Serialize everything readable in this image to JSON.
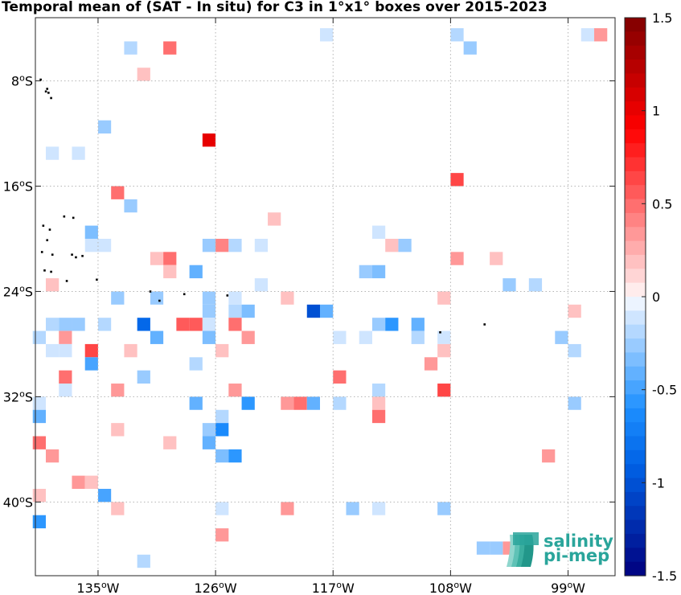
{
  "chart_data": {
    "type": "heatmap",
    "title": "Temporal mean of (SAT - In situ) for C3 in 1°x1° boxes over 2015-2023",
    "x_ticks": [
      {
        "value": -135,
        "label": "135°W"
      },
      {
        "value": -126,
        "label": "126°W"
      },
      {
        "value": -117,
        "label": "117°W"
      },
      {
        "value": -108,
        "label": "108°W"
      },
      {
        "value": -99,
        "label": "99°W"
      }
    ],
    "y_ticks": [
      {
        "value": -8,
        "label": "8°S"
      },
      {
        "value": -16,
        "label": "16°S"
      },
      {
        "value": -24,
        "label": "24°S"
      },
      {
        "value": -32,
        "label": "32°S"
      },
      {
        "value": -40,
        "label": "40°S"
      }
    ],
    "xlim": [
      -139.8,
      -95.4
    ],
    "ylim": [
      -45.6,
      -3.2
    ],
    "grid": true,
    "colorbar": {
      "range": [
        -1.5,
        1.5
      ],
      "ticks": [
        {
          "value": 1.5,
          "label": "1.5"
        },
        {
          "value": 1,
          "label": "1"
        },
        {
          "value": 0.5,
          "label": "0.5"
        },
        {
          "value": 0,
          "label": "0"
        },
        {
          "value": -0.5,
          "label": "-0.5"
        },
        {
          "value": -1,
          "label": "-1"
        },
        {
          "value": -1.5,
          "label": "-1.5"
        }
      ]
    },
    "cells": [
      {
        "lon": -117.5,
        "lat": -4.5,
        "v": -0.1
      },
      {
        "lon": -107.5,
        "lat": -4.5,
        "v": -0.2
      },
      {
        "lon": -97.5,
        "lat": -4.5,
        "v": -0.1
      },
      {
        "lon": -96.5,
        "lat": -4.5,
        "v": 0.3
      },
      {
        "lon": -132.5,
        "lat": -5.5,
        "v": -0.2
      },
      {
        "lon": -129.5,
        "lat": -5.5,
        "v": 0.45
      },
      {
        "lon": -106.5,
        "lat": -5.5,
        "v": -0.3
      },
      {
        "lon": -131.5,
        "lat": -7.5,
        "v": 0.2
      },
      {
        "lon": -134.5,
        "lat": -11.5,
        "v": -0.25
      },
      {
        "lon": -126.5,
        "lat": -12.5,
        "v": 1.0
      },
      {
        "lon": -138.5,
        "lat": -13.5,
        "v": -0.15
      },
      {
        "lon": -136.5,
        "lat": -13.5,
        "v": -0.15
      },
      {
        "lon": -107.5,
        "lat": -15.5,
        "v": 0.6
      },
      {
        "lon": -133.5,
        "lat": -16.5,
        "v": 0.5
      },
      {
        "lon": -132.5,
        "lat": -17.5,
        "v": -0.25
      },
      {
        "lon": -121.5,
        "lat": -18.5,
        "v": 0.15
      },
      {
        "lon": -135.5,
        "lat": -19.5,
        "v": -0.35
      },
      {
        "lon": -113.5,
        "lat": -19.5,
        "v": -0.1
      },
      {
        "lon": -135.5,
        "lat": -20.5,
        "v": -0.1
      },
      {
        "lon": -134.5,
        "lat": -20.5,
        "v": -0.1
      },
      {
        "lon": -126.5,
        "lat": -20.5,
        "v": -0.3
      },
      {
        "lon": -125.5,
        "lat": -20.5,
        "v": 0.4
      },
      {
        "lon": -124.5,
        "lat": -20.5,
        "v": -0.2
      },
      {
        "lon": -122.5,
        "lat": -20.5,
        "v": -0.15
      },
      {
        "lon": -112.5,
        "lat": -20.5,
        "v": 0.15
      },
      {
        "lon": -111.5,
        "lat": -20.5,
        "v": -0.25
      },
      {
        "lon": -130.5,
        "lat": -21.5,
        "v": 0.2
      },
      {
        "lon": -129.5,
        "lat": -21.5,
        "v": 0.45
      },
      {
        "lon": -107.5,
        "lat": -21.5,
        "v": 0.3
      },
      {
        "lon": -104.5,
        "lat": -21.5,
        "v": 0.2
      },
      {
        "lon": -129.5,
        "lat": -22.5,
        "v": 0.2
      },
      {
        "lon": -127.5,
        "lat": -22.5,
        "v": -0.45
      },
      {
        "lon": -114.5,
        "lat": -22.5,
        "v": -0.25
      },
      {
        "lon": -113.5,
        "lat": -22.5,
        "v": -0.35
      },
      {
        "lon": -138.5,
        "lat": -23.5,
        "v": 0.2
      },
      {
        "lon": -122.5,
        "lat": -23.5,
        "v": -0.15
      },
      {
        "lon": -103.5,
        "lat": -23.5,
        "v": -0.3
      },
      {
        "lon": -101.5,
        "lat": -23.5,
        "v": -0.2
      },
      {
        "lon": -133.5,
        "lat": -24.5,
        "v": -0.3
      },
      {
        "lon": -130.5,
        "lat": -24.5,
        "v": -0.3
      },
      {
        "lon": -126.5,
        "lat": -24.5,
        "v": -0.3
      },
      {
        "lon": -124.5,
        "lat": -24.5,
        "v": -0.15
      },
      {
        "lon": -120.5,
        "lat": -24.5,
        "v": 0.2
      },
      {
        "lon": -108.5,
        "lat": -24.5,
        "v": 0.2
      },
      {
        "lon": -126.5,
        "lat": -25.5,
        "v": -0.3
      },
      {
        "lon": -124.5,
        "lat": -25.5,
        "v": -0.2
      },
      {
        "lon": -123.5,
        "lat": -25.5,
        "v": -0.35
      },
      {
        "lon": -118.5,
        "lat": -25.5,
        "v": -1.0
      },
      {
        "lon": -117.5,
        "lat": -25.5,
        "v": -0.45
      },
      {
        "lon": -98.5,
        "lat": -25.5,
        "v": 0.2
      },
      {
        "lon": -138.5,
        "lat": -26.5,
        "v": -0.2
      },
      {
        "lon": -137.5,
        "lat": -26.5,
        "v": -0.3
      },
      {
        "lon": -136.5,
        "lat": -26.5,
        "v": -0.3
      },
      {
        "lon": -134.5,
        "lat": -26.5,
        "v": -0.2
      },
      {
        "lon": -131.5,
        "lat": -26.5,
        "v": -0.9
      },
      {
        "lon": -128.5,
        "lat": -26.5,
        "v": 0.55
      },
      {
        "lon": -127.5,
        "lat": -26.5,
        "v": 0.55
      },
      {
        "lon": -126.5,
        "lat": -26.5,
        "v": -0.1
      },
      {
        "lon": -124.5,
        "lat": -26.5,
        "v": 0.45
      },
      {
        "lon": -113.5,
        "lat": -26.5,
        "v": -0.3
      },
      {
        "lon": -112.5,
        "lat": -26.5,
        "v": -0.6
      },
      {
        "lon": -110.5,
        "lat": -26.5,
        "v": -0.4
      },
      {
        "lon": -139.5,
        "lat": -27.5,
        "v": -0.2
      },
      {
        "lon": -137.5,
        "lat": -27.5,
        "v": 0.3
      },
      {
        "lon": -130.5,
        "lat": -27.5,
        "v": -0.4
      },
      {
        "lon": -126.5,
        "lat": -27.5,
        "v": -0.35
      },
      {
        "lon": -123.5,
        "lat": -27.5,
        "v": 0.3
      },
      {
        "lon": -116.5,
        "lat": -27.5,
        "v": -0.1
      },
      {
        "lon": -114.5,
        "lat": -27.5,
        "v": -0.15
      },
      {
        "lon": -110.5,
        "lat": -27.5,
        "v": -0.2
      },
      {
        "lon": -108.5,
        "lat": -27.5,
        "v": -0.15
      },
      {
        "lon": -99.5,
        "lat": -27.5,
        "v": -0.3
      },
      {
        "lon": -138.5,
        "lat": -28.5,
        "v": -0.15
      },
      {
        "lon": -137.5,
        "lat": -28.5,
        "v": -0.15
      },
      {
        "lon": -135.5,
        "lat": -28.5,
        "v": 0.6
      },
      {
        "lon": -132.5,
        "lat": -28.5,
        "v": 0.2
      },
      {
        "lon": -125.5,
        "lat": -28.5,
        "v": 0.15
      },
      {
        "lon": -108.5,
        "lat": -28.5,
        "v": 0.2
      },
      {
        "lon": -98.5,
        "lat": -28.5,
        "v": -0.2
      },
      {
        "lon": -135.5,
        "lat": -29.5,
        "v": -0.5
      },
      {
        "lon": -127.5,
        "lat": -29.5,
        "v": -0.2
      },
      {
        "lon": -109.5,
        "lat": -29.5,
        "v": 0.3
      },
      {
        "lon": -137.5,
        "lat": -30.5,
        "v": 0.45
      },
      {
        "lon": -131.5,
        "lat": -30.5,
        "v": -0.3
      },
      {
        "lon": -116.5,
        "lat": -30.5,
        "v": 0.5
      },
      {
        "lon": -137.5,
        "lat": -31.5,
        "v": -0.1
      },
      {
        "lon": -133.5,
        "lat": -31.5,
        "v": 0.35
      },
      {
        "lon": -124.5,
        "lat": -31.5,
        "v": 0.3
      },
      {
        "lon": -113.5,
        "lat": -31.5,
        "v": -0.2
      },
      {
        "lon": -108.5,
        "lat": -31.5,
        "v": 0.6
      },
      {
        "lon": -139.5,
        "lat": -32.5,
        "v": -0.15
      },
      {
        "lon": -127.5,
        "lat": -32.5,
        "v": -0.45
      },
      {
        "lon": -123.5,
        "lat": -32.5,
        "v": -0.6
      },
      {
        "lon": -120.5,
        "lat": -32.5,
        "v": 0.3
      },
      {
        "lon": -119.5,
        "lat": -32.5,
        "v": 0.45
      },
      {
        "lon": -118.5,
        "lat": -32.5,
        "v": -0.45
      },
      {
        "lon": -116.5,
        "lat": -32.5,
        "v": -0.2
      },
      {
        "lon": -113.5,
        "lat": -32.5,
        "v": 0.15
      },
      {
        "lon": -98.5,
        "lat": -32.5,
        "v": -0.25
      },
      {
        "lon": -139.5,
        "lat": -33.5,
        "v": -0.45
      },
      {
        "lon": -125.5,
        "lat": -33.5,
        "v": -0.2
      },
      {
        "lon": -113.5,
        "lat": -33.5,
        "v": 0.45
      },
      {
        "lon": -133.5,
        "lat": -34.5,
        "v": 0.2
      },
      {
        "lon": -126.5,
        "lat": -34.5,
        "v": -0.3
      },
      {
        "lon": -125.5,
        "lat": -34.5,
        "v": -0.65
      },
      {
        "lon": -139.5,
        "lat": -35.5,
        "v": 0.45
      },
      {
        "lon": -129.5,
        "lat": -35.5,
        "v": 0.2
      },
      {
        "lon": -126.5,
        "lat": -35.5,
        "v": -0.45
      },
      {
        "lon": -138.5,
        "lat": -36.5,
        "v": 0.3
      },
      {
        "lon": -125.5,
        "lat": -36.5,
        "v": -0.35
      },
      {
        "lon": -124.5,
        "lat": -36.5,
        "v": -0.55
      },
      {
        "lon": -100.5,
        "lat": -36.5,
        "v": 0.3
      },
      {
        "lon": -136.5,
        "lat": -38.5,
        "v": 0.35
      },
      {
        "lon": -135.5,
        "lat": -38.5,
        "v": 0.2
      },
      {
        "lon": -139.5,
        "lat": -39.5,
        "v": 0.2
      },
      {
        "lon": -134.5,
        "lat": -39.5,
        "v": -0.5
      },
      {
        "lon": -133.5,
        "lat": -40.5,
        "v": 0.2
      },
      {
        "lon": -125.5,
        "lat": -40.5,
        "v": -0.1
      },
      {
        "lon": -120.5,
        "lat": -40.5,
        "v": 0.3
      },
      {
        "lon": -115.5,
        "lat": -40.5,
        "v": -0.25
      },
      {
        "lon": -113.5,
        "lat": -40.5,
        "v": -0.15
      },
      {
        "lon": -108.5,
        "lat": -40.5,
        "v": -0.25
      },
      {
        "lon": -139.5,
        "lat": -41.5,
        "v": -0.55
      },
      {
        "lon": -125.5,
        "lat": -42.5,
        "v": 0.3
      },
      {
        "lon": -103.5,
        "lat": -43.5,
        "v": 0.3
      },
      {
        "lon": -104.5,
        "lat": -43.5,
        "v": -0.3
      },
      {
        "lon": -105.5,
        "lat": -43.5,
        "v": -0.3
      },
      {
        "lon": -131.5,
        "lat": -44.5,
        "v": -0.2
      }
    ],
    "land": [
      [
        -139.4,
        -7.9
      ],
      [
        -139.0,
        -8.8
      ],
      [
        -138.8,
        -8.9
      ],
      [
        -138.6,
        -9.3
      ],
      [
        -138.9,
        -8.6
      ],
      [
        -139.2,
        -19.0
      ],
      [
        -138.7,
        -19.3
      ],
      [
        -136.9,
        -18.4
      ],
      [
        -137.6,
        -18.3
      ],
      [
        -138.9,
        -20.1
      ],
      [
        -138.5,
        -21.2
      ],
      [
        -139.3,
        -21.0
      ],
      [
        -137.0,
        -21.2
      ],
      [
        -136.2,
        -21.3
      ],
      [
        -136.7,
        -21.4
      ],
      [
        -139.1,
        -22.4
      ],
      [
        -138.6,
        -22.5
      ],
      [
        -135.1,
        -23.1
      ],
      [
        -137.4,
        -23.2
      ],
      [
        -131.0,
        -24.0
      ],
      [
        -128.4,
        -24.2
      ],
      [
        -130.3,
        -24.7
      ],
      [
        -125.1,
        -24.3
      ],
      [
        -108.8,
        -27.1
      ],
      [
        -105.4,
        -26.5
      ]
    ]
  },
  "colors": {
    "scale_top": "#7f0000",
    "scale_mid": "#ffffff",
    "scale_bottom": "#00007f",
    "logo_teal": "#2aa59b"
  },
  "logo": {
    "line1": "salinity",
    "line2": "pi-mep"
  }
}
